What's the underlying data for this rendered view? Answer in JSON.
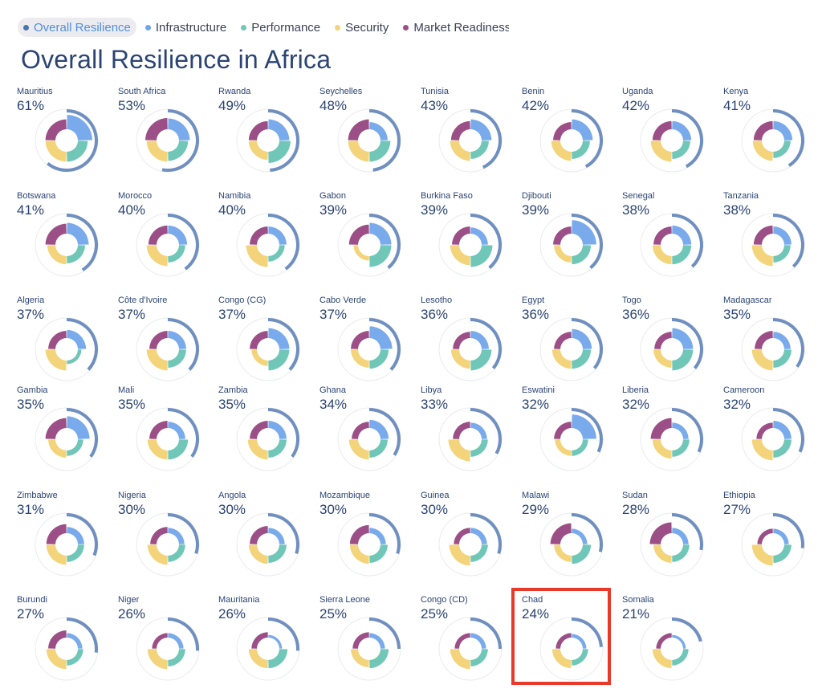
{
  "legend": [
    {
      "label": "Overall Resilience",
      "color": "#4a73b2",
      "active": true
    },
    {
      "label": "Infrastructure",
      "color": "#6fa6ea"
    },
    {
      "label": "Performance",
      "color": "#6fc8b8"
    },
    {
      "label": "Security",
      "color": "#f3d47a"
    },
    {
      "label": "Market Readiness",
      "color": "#9b4f86"
    }
  ],
  "chart_data": {
    "type": "small-multiples-radial",
    "title": "Overall Resilience in Africa",
    "series_colors": {
      "overall": "#6f8fc0",
      "infrastructure": "#78aaec",
      "performance": "#70c7b8",
      "security": "#f3d47a",
      "market": "#9b4f86"
    },
    "countries": [
      {
        "name": "Mauritius",
        "value": "61%",
        "overall": 61,
        "infrastructure": 80,
        "performance": 55,
        "security": 55,
        "market": 55
      },
      {
        "name": "South Africa",
        "value": "53%",
        "overall": 53,
        "infrastructure": 60,
        "performance": 50,
        "security": 55,
        "market": 62
      },
      {
        "name": "Rwanda",
        "value": "49%",
        "overall": 49,
        "infrastructure": 55,
        "performance": 62,
        "security": 45,
        "market": 45
      },
      {
        "name": "Seychelles",
        "value": "48%",
        "overall": 48,
        "infrastructure": 40,
        "performance": 55,
        "security": 55,
        "market": 55
      },
      {
        "name": "Tunisia",
        "value": "43%",
        "overall": 43,
        "infrastructure": 55,
        "performance": 40,
        "security": 50,
        "market": 45
      },
      {
        "name": "Benin",
        "value": "42%",
        "overall": 42,
        "infrastructure": 55,
        "performance": 40,
        "security": 50,
        "market": 40
      },
      {
        "name": "Uganda",
        "value": "42%",
        "overall": 42,
        "infrastructure": 45,
        "performance": 40,
        "security": 55,
        "market": 45
      },
      {
        "name": "Kenya",
        "value": "41%",
        "overall": 41,
        "infrastructure": 45,
        "performance": 35,
        "security": 50,
        "market": 45
      },
      {
        "name": "Botswana",
        "value": "41%",
        "overall": 41,
        "infrastructure": 60,
        "performance": 40,
        "security": 45,
        "market": 55
      },
      {
        "name": "Morocco",
        "value": "40%",
        "overall": 40,
        "infrastructure": 45,
        "performance": 35,
        "security": 55,
        "market": 45
      },
      {
        "name": "Namibia",
        "value": "40%",
        "overall": 40,
        "infrastructure": 40,
        "performance": 30,
        "security": 60,
        "market": 40
      },
      {
        "name": "Gabon",
        "value": "39%",
        "overall": 39,
        "infrastructure": 60,
        "performance": 60,
        "security": 25,
        "market": 50
      },
      {
        "name": "Burkina Faso",
        "value": "39%",
        "overall": 39,
        "infrastructure": 35,
        "performance": 60,
        "security": 50,
        "market": 40
      },
      {
        "name": "Djibouti",
        "value": "39%",
        "overall": 39,
        "infrastructure": 75,
        "performance": 45,
        "security": 35,
        "market": 40
      },
      {
        "name": "Senegal",
        "value": "38%",
        "overall": 38,
        "infrastructure": 45,
        "performance": 45,
        "security": 45,
        "market": 40
      },
      {
        "name": "Tanzania",
        "value": "38%",
        "overall": 38,
        "infrastructure": 40,
        "performance": 35,
        "security": 55,
        "market": 45
      },
      {
        "name": "Algeria",
        "value": "37%",
        "overall": 37,
        "infrastructure": 45,
        "performance": 20,
        "security": 55,
        "market": 40
      },
      {
        "name": "Côte d'Ivoire",
        "value": "37%",
        "overall": 37,
        "infrastructure": 40,
        "performance": 40,
        "security": 55,
        "market": 40
      },
      {
        "name": "Congo (CG)",
        "value": "37%",
        "overall": 37,
        "infrastructure": 55,
        "performance": 55,
        "security": 30,
        "market": 40
      },
      {
        "name": "Cabo Verde",
        "value": "37%",
        "overall": 37,
        "infrastructure": 65,
        "performance": 45,
        "security": 40,
        "market": 40
      },
      {
        "name": "Lesotho",
        "value": "36%",
        "overall": 36,
        "infrastructure": 40,
        "performance": 55,
        "security": 45,
        "market": 35
      },
      {
        "name": "Egypt",
        "value": "36%",
        "overall": 36,
        "infrastructure": 50,
        "performance": 45,
        "security": 45,
        "market": 35
      },
      {
        "name": "Togo",
        "value": "36%",
        "overall": 36,
        "infrastructure": 55,
        "performance": 55,
        "security": 40,
        "market": 35
      },
      {
        "name": "Madagascar",
        "value": "35%",
        "overall": 35,
        "infrastructure": 35,
        "performance": 40,
        "security": 55,
        "market": 40
      },
      {
        "name": "Gambia",
        "value": "35%",
        "overall": 35,
        "infrastructure": 65,
        "performance": 30,
        "security": 40,
        "market": 55
      },
      {
        "name": "Mali",
        "value": "35%",
        "overall": 35,
        "infrastructure": 35,
        "performance": 50,
        "security": 50,
        "market": 40
      },
      {
        "name": "Zambia",
        "value": "35%",
        "overall": 35,
        "infrastructure": 40,
        "performance": 40,
        "security": 50,
        "market": 40
      },
      {
        "name": "Ghana",
        "value": "34%",
        "overall": 34,
        "infrastructure": 45,
        "performance": 40,
        "security": 50,
        "market": 35
      },
      {
        "name": "Libya",
        "value": "33%",
        "overall": 33,
        "infrastructure": 30,
        "performance": 35,
        "security": 60,
        "market": 35
      },
      {
        "name": "Eswatini",
        "value": "32%",
        "overall": 32,
        "infrastructure": 75,
        "performance": 30,
        "security": 30,
        "market": 35
      },
      {
        "name": "Liberia",
        "value": "32%",
        "overall": 32,
        "infrastructure": 30,
        "performance": 35,
        "security": 45,
        "market": 55
      },
      {
        "name": "Cameroon",
        "value": "32%",
        "overall": 32,
        "infrastructure": 40,
        "performance": 40,
        "security": 55,
        "market": 30
      },
      {
        "name": "Zimbabwe",
        "value": "31%",
        "overall": 31,
        "infrastructure": 35,
        "performance": 35,
        "security": 50,
        "market": 50
      },
      {
        "name": "Nigeria",
        "value": "30%",
        "overall": 30,
        "infrastructure": 30,
        "performance": 35,
        "security": 50,
        "market": 35
      },
      {
        "name": "Angola",
        "value": "30%",
        "overall": 30,
        "infrastructure": 30,
        "performance": 40,
        "security": 45,
        "market": 40
      },
      {
        "name": "Mozambique",
        "value": "30%",
        "overall": 30,
        "infrastructure": 30,
        "performance": 40,
        "security": 45,
        "market": 45
      },
      {
        "name": "Guinea",
        "value": "30%",
        "overall": 30,
        "infrastructure": 30,
        "performance": 35,
        "security": 55,
        "market": 30
      },
      {
        "name": "Malawi",
        "value": "29%",
        "overall": 29,
        "infrastructure": 25,
        "performance": 45,
        "security": 35,
        "market": 55
      },
      {
        "name": "Sudan",
        "value": "28%",
        "overall": 28,
        "infrastructure": 30,
        "performance": 35,
        "security": 40,
        "market": 60
      },
      {
        "name": "Ethiopia",
        "value": "27%",
        "overall": 27,
        "infrastructure": 25,
        "performance": 40,
        "security": 55,
        "market": 25
      },
      {
        "name": "Burundi",
        "value": "27%",
        "overall": 27,
        "infrastructure": 25,
        "performance": 30,
        "security": 50,
        "market": 40
      },
      {
        "name": "Niger",
        "value": "26%",
        "overall": 26,
        "infrastructure": 25,
        "performance": 35,
        "security": 50,
        "market": 25
      },
      {
        "name": "Mauritania",
        "value": "26%",
        "overall": 26,
        "infrastructure": 15,
        "performance": 45,
        "security": 45,
        "market": 30
      },
      {
        "name": "Sierra Leone",
        "value": "25%",
        "overall": 25,
        "infrastructure": 25,
        "performance": 45,
        "security": 40,
        "market": 30
      },
      {
        "name": "Congo (CD)",
        "value": "25%",
        "overall": 25,
        "infrastructure": 25,
        "performance": 35,
        "security": 50,
        "market": 25
      },
      {
        "name": "Chad",
        "value": "24%",
        "overall": 24,
        "infrastructure": 20,
        "performance": 30,
        "security": 45,
        "market": 25
      },
      {
        "name": "Somalia",
        "value": "21%",
        "overall": 21,
        "infrastructure": 15,
        "performance": 30,
        "security": 45,
        "market": 25
      }
    ],
    "highlighted": "Chad"
  }
}
